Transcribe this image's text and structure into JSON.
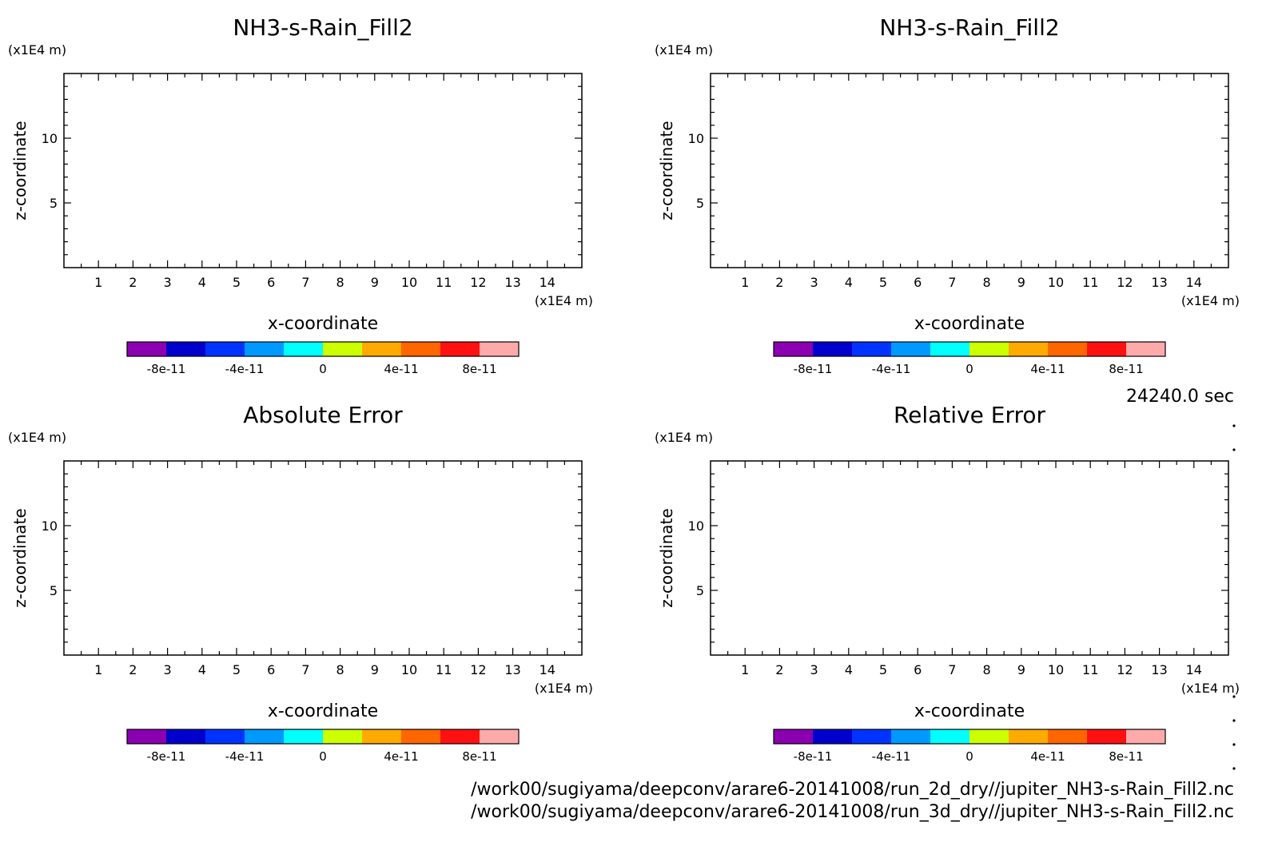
{
  "colorbar_colors": [
    "#8b00b0",
    "#0000cc",
    "#0033ff",
    "#0099ff",
    "#00ffff",
    "#ccff00",
    "#ffaa00",
    "#ff6600",
    "#ff1111",
    "#ffaaaa"
  ],
  "time_label": "24240.0 sec",
  "file_paths": [
    "/work00/sugiyama/deepconv/arare6-20141008/run_2d_dry//jupiter_NH3-s-Rain_Fill2.nc",
    "/work00/sugiyama/deepconv/arare6-20141008/run_3d_dry//jupiter_NH3-s-Rain_Fill2.nc"
  ],
  "chart_data": [
    {
      "type": "heatmap",
      "title": "NH3-s-Rain_Fill2",
      "xlabel": "x-coordinate",
      "ylabel": "z-coordinate",
      "x_unit": "(x1E4 m)",
      "y_unit": "(x1E4 m)",
      "xlim": [
        0,
        15
      ],
      "ylim": [
        0,
        15
      ],
      "x_ticks": [
        "1",
        "2",
        "3",
        "4",
        "5",
        "6",
        "7",
        "8",
        "9",
        "10",
        "11",
        "12",
        "13",
        "14"
      ],
      "y_ticks": [
        "5",
        "10"
      ],
      "colorbar": {
        "range": [
          -1e-10,
          1e-10
        ],
        "tick_labels": [
          "-8e-11",
          "-4e-11",
          "0",
          "4e-11",
          "8e-11"
        ]
      },
      "values": []
    },
    {
      "type": "heatmap",
      "title": "NH3-s-Rain_Fill2",
      "xlabel": "x-coordinate",
      "ylabel": "z-coordinate",
      "x_unit": "(x1E4 m)",
      "y_unit": "(x1E4 m)",
      "xlim": [
        0,
        15
      ],
      "ylim": [
        0,
        15
      ],
      "x_ticks": [
        "1",
        "2",
        "3",
        "4",
        "5",
        "6",
        "7",
        "8",
        "9",
        "10",
        "11",
        "12",
        "13",
        "14"
      ],
      "y_ticks": [
        "5",
        "10"
      ],
      "colorbar": {
        "range": [
          -1e-10,
          1e-10
        ],
        "tick_labels": [
          "-8e-11",
          "-4e-11",
          "0",
          "4e-11",
          "8e-11"
        ]
      },
      "values": []
    },
    {
      "type": "heatmap",
      "title": "Absolute Error",
      "xlabel": "x-coordinate",
      "ylabel": "z-coordinate",
      "x_unit": "(x1E4 m)",
      "y_unit": "(x1E4 m)",
      "xlim": [
        0,
        15
      ],
      "ylim": [
        0,
        15
      ],
      "x_ticks": [
        "1",
        "2",
        "3",
        "4",
        "5",
        "6",
        "7",
        "8",
        "9",
        "10",
        "11",
        "12",
        "13",
        "14"
      ],
      "y_ticks": [
        "5",
        "10"
      ],
      "colorbar": {
        "range": [
          -1e-10,
          1e-10
        ],
        "tick_labels": [
          "-8e-11",
          "-4e-11",
          "0",
          "4e-11",
          "8e-11"
        ]
      },
      "values": []
    },
    {
      "type": "heatmap",
      "title": "Relative Error",
      "xlabel": "x-coordinate",
      "ylabel": "z-coordinate",
      "x_unit": "(x1E4 m)",
      "y_unit": "(x1E4 m)",
      "xlim": [
        0,
        15
      ],
      "ylim": [
        0,
        15
      ],
      "x_ticks": [
        "1",
        "2",
        "3",
        "4",
        "5",
        "6",
        "7",
        "8",
        "9",
        "10",
        "11",
        "12",
        "13",
        "14"
      ],
      "y_ticks": [
        "5",
        "10"
      ],
      "colorbar": {
        "range": [
          -1e-10,
          1e-10
        ],
        "tick_labels": [
          "-8e-11",
          "-4e-11",
          "0",
          "4e-11",
          "8e-11"
        ]
      },
      "values": []
    }
  ]
}
